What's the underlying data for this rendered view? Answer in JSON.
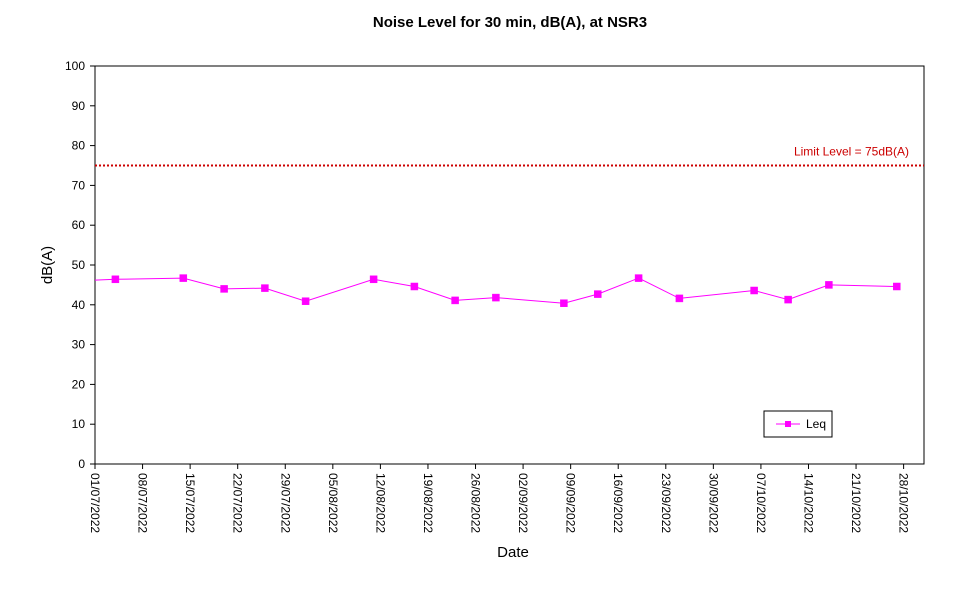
{
  "chart_data": {
    "type": "line",
    "title": "Noise Level for 30 min, dB(A), at NSR3",
    "xlabel": "Date",
    "ylabel": "dB(A)",
    "ylim": [
      0,
      100
    ],
    "yticks": [
      "0",
      "10",
      "20",
      "30",
      "40",
      "50",
      "60",
      "70",
      "80",
      "90",
      "100"
    ],
    "xlim": [
      "2022-07-01",
      "2022-10-31"
    ],
    "xtick_labels": [
      "01/07/2022",
      "08/07/2022",
      "15/07/2022",
      "22/07/2022",
      "29/07/2022",
      "05/08/2022",
      "12/08/2022",
      "19/08/2022",
      "26/08/2022",
      "02/09/2022",
      "09/09/2022",
      "16/09/2022",
      "23/09/2022",
      "30/09/2022",
      "07/10/2022",
      "14/10/2022",
      "21/10/2022",
      "28/10/2022"
    ],
    "grid": false,
    "legend_position": "bottom-right",
    "series": [
      {
        "name": "Leq",
        "color": "#ff00ff",
        "marker": "square",
        "x": [
          "2022-07-01",
          "2022-07-04",
          "2022-07-14",
          "2022-07-20",
          "2022-07-26",
          "2022-08-01",
          "2022-08-11",
          "2022-08-17",
          "2022-08-23",
          "2022-08-29",
          "2022-09-08",
          "2022-09-13",
          "2022-09-19",
          "2022-09-25",
          "2022-10-06",
          "2022-10-11",
          "2022-10-17",
          "2022-10-27"
        ],
        "values": [
          46.2,
          46.4,
          46.7,
          44.0,
          44.2,
          40.9,
          46.4,
          44.6,
          41.1,
          41.8,
          40.4,
          42.7,
          46.7,
          41.6,
          43.6,
          41.3,
          45.0,
          44.6
        ],
        "show_marker": [
          false,
          true,
          true,
          true,
          true,
          true,
          true,
          true,
          true,
          true,
          true,
          true,
          true,
          true,
          true,
          true,
          true,
          true
        ]
      }
    ],
    "reference_line": {
      "label": "Limit Level  = 75dB(A)",
      "value": 75,
      "color": "#cc0000",
      "style": "dotted"
    }
  }
}
